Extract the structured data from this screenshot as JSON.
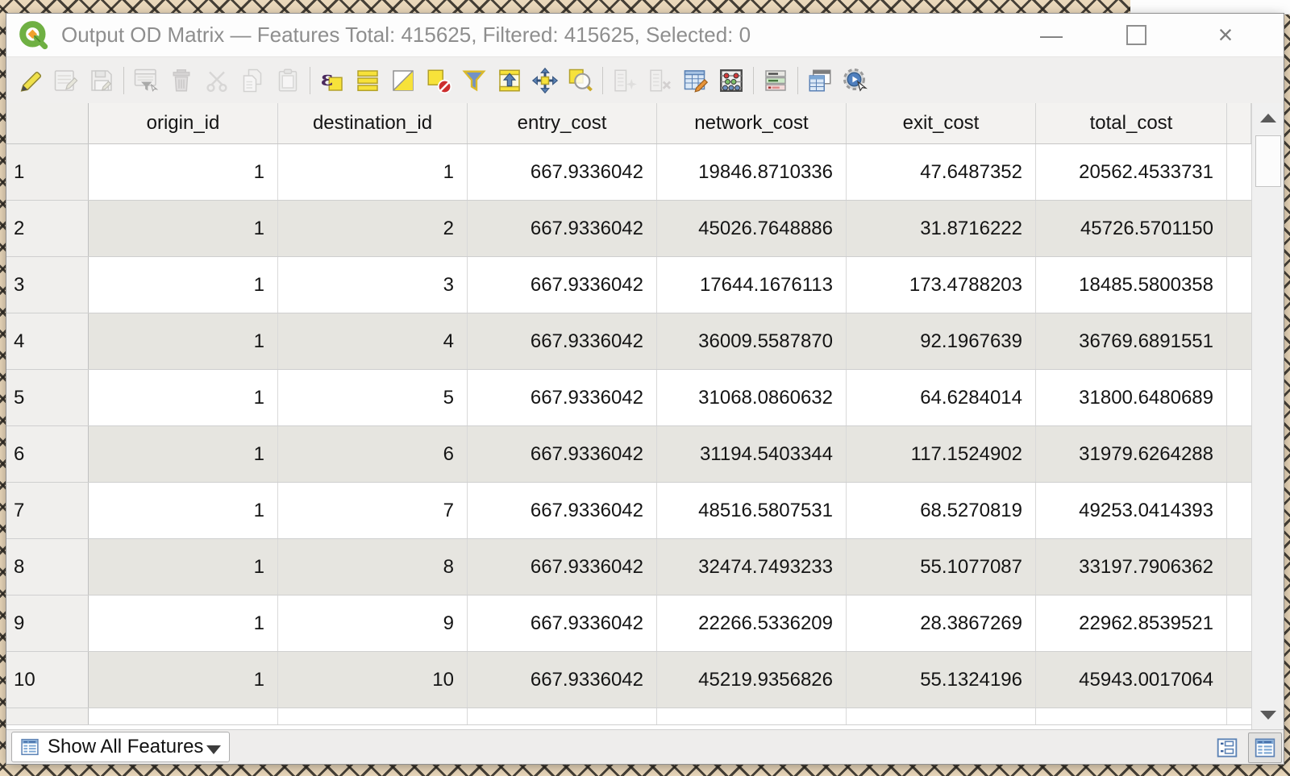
{
  "window": {
    "title": "Output OD Matrix — Features Total: 415625, Filtered: 415625, Selected: 0",
    "controls": {
      "minimize": "—",
      "maximize": "□",
      "close": "×"
    }
  },
  "toolbar": {
    "groups": [
      [
        {
          "name": "toggle-editing",
          "icon": "pencil",
          "enabled": true
        },
        {
          "name": "multi-edit",
          "icon": "form-pencil",
          "enabled": false
        },
        {
          "name": "save-edits",
          "icon": "save",
          "enabled": false
        }
      ],
      [
        {
          "name": "select-by-form",
          "icon": "form-funnel",
          "enabled": false
        },
        {
          "name": "delete-selected",
          "icon": "trash",
          "enabled": false
        },
        {
          "name": "cut-features",
          "icon": "cut",
          "enabled": false
        },
        {
          "name": "copy-features",
          "icon": "copy",
          "enabled": false
        },
        {
          "name": "paste-features",
          "icon": "paste",
          "enabled": false
        }
      ],
      [
        {
          "name": "select-by-expression",
          "icon": "expr",
          "enabled": true
        },
        {
          "name": "select-all",
          "icon": "select-all",
          "enabled": true
        },
        {
          "name": "invert-selection",
          "icon": "invert",
          "enabled": true
        },
        {
          "name": "deselect-all",
          "icon": "deselect",
          "enabled": true
        },
        {
          "name": "filter-features",
          "icon": "funnel",
          "enabled": true
        },
        {
          "name": "move-selection-to-top",
          "icon": "move-top",
          "enabled": true
        },
        {
          "name": "pan-to-selection",
          "icon": "pan",
          "enabled": true
        },
        {
          "name": "zoom-to-selection",
          "icon": "zoom",
          "enabled": true
        }
      ],
      [
        {
          "name": "new-field",
          "icon": "field-star",
          "enabled": false
        },
        {
          "name": "delete-field",
          "icon": "field-x",
          "enabled": false
        },
        {
          "name": "edit-attributes",
          "icon": "edit-table",
          "enabled": true
        },
        {
          "name": "field-calculator",
          "icon": "abacus",
          "enabled": true
        }
      ],
      [
        {
          "name": "conditional-formatting",
          "icon": "cond",
          "enabled": true
        }
      ],
      [
        {
          "name": "dock-attribute-table",
          "icon": "dock",
          "enabled": true
        },
        {
          "name": "actions",
          "icon": "actions",
          "enabled": true
        }
      ]
    ]
  },
  "table": {
    "columns": [
      "origin_id",
      "destination_id",
      "entry_cost",
      "network_cost",
      "exit_cost",
      "total_cost"
    ],
    "rows": [
      {
        "row": "1",
        "values": [
          "1",
          "1",
          "667.9336042",
          "19846.8710336",
          "47.6487352",
          "20562.4533731"
        ]
      },
      {
        "row": "2",
        "values": [
          "1",
          "2",
          "667.9336042",
          "45026.7648886",
          "31.8716222",
          "45726.5701150"
        ]
      },
      {
        "row": "3",
        "values": [
          "1",
          "3",
          "667.9336042",
          "17644.1676113",
          "173.4788203",
          "18485.5800358"
        ]
      },
      {
        "row": "4",
        "values": [
          "1",
          "4",
          "667.9336042",
          "36009.5587870",
          "92.1967639",
          "36769.6891551"
        ]
      },
      {
        "row": "5",
        "values": [
          "1",
          "5",
          "667.9336042",
          "31068.0860632",
          "64.6284014",
          "31800.6480689"
        ]
      },
      {
        "row": "6",
        "values": [
          "1",
          "6",
          "667.9336042",
          "31194.5403344",
          "117.1524902",
          "31979.6264288"
        ]
      },
      {
        "row": "7",
        "values": [
          "1",
          "7",
          "667.9336042",
          "48516.5807531",
          "68.5270819",
          "49253.0414393"
        ]
      },
      {
        "row": "8",
        "values": [
          "1",
          "8",
          "667.9336042",
          "32474.7493233",
          "55.1077087",
          "33197.7906362"
        ]
      },
      {
        "row": "9",
        "values": [
          "1",
          "9",
          "667.9336042",
          "22266.5336209",
          "28.3867269",
          "22962.8539521"
        ]
      },
      {
        "row": "10",
        "values": [
          "1",
          "10",
          "667.9336042",
          "45219.9356826",
          "55.1324196",
          "45943.0017064"
        ]
      }
    ]
  },
  "status_bar": {
    "filter_label": "Show All Features"
  },
  "colors": {
    "qgis_green": "#6fb043",
    "icon_yellow": "#f7e23a",
    "icon_blue": "#5b82b5",
    "title_text": "#8e8e8e"
  }
}
